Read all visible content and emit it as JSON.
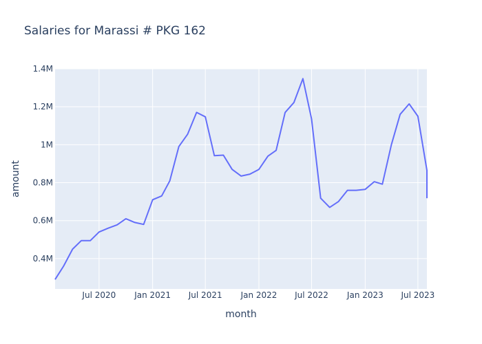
{
  "chart_data": {
    "type": "line",
    "title": "Salaries for Marassi # PKG 162",
    "xlabel": "month",
    "ylabel": "amount",
    "xlim": [
      "2020-02-01",
      "2023-08-01"
    ],
    "ylim": [
      240000,
      1400000
    ],
    "y_ticks": [
      {
        "value": 400000,
        "label": "0.4M"
      },
      {
        "value": 600000,
        "label": "0.6M"
      },
      {
        "value": 800000,
        "label": "0.8M"
      },
      {
        "value": 1000000,
        "label": "1M"
      },
      {
        "value": 1200000,
        "label": "1.2M"
      },
      {
        "value": 1400000,
        "label": "1.4M"
      }
    ],
    "x_ticks": [
      {
        "value": "2020-07-01",
        "label": "Jul 2020"
      },
      {
        "value": "2021-01-01",
        "label": "Jan 2021"
      },
      {
        "value": "2021-07-01",
        "label": "Jul 2021"
      },
      {
        "value": "2022-01-01",
        "label": "Jan 2022"
      },
      {
        "value": "2022-07-01",
        "label": "Jul 2022"
      },
      {
        "value": "2023-01-01",
        "label": "Jan 2023"
      },
      {
        "value": "2023-07-01",
        "label": "Jul 2023"
      }
    ],
    "line_color": "#636efa",
    "plot_bg": "#e5ecf6",
    "grid": true,
    "series": [
      {
        "x": [
          "2020-02-01",
          "2020-03-01",
          "2020-04-01",
          "2020-05-01",
          "2020-06-01",
          "2020-07-01",
          "2020-08-01",
          "2020-09-01",
          "2020-10-01",
          "2020-11-01",
          "2020-12-01",
          "2021-01-01",
          "2021-02-01",
          "2021-03-01",
          "2021-04-01",
          "2021-05-01",
          "2021-06-01",
          "2021-07-01",
          "2021-08-01",
          "2021-09-01",
          "2021-10-01",
          "2021-11-01",
          "2021-12-01",
          "2022-01-01",
          "2022-02-01",
          "2022-03-01",
          "2022-04-01",
          "2022-05-01",
          "2022-06-01",
          "2022-07-01",
          "2022-08-01",
          "2022-09-01",
          "2022-10-01",
          "2022-11-01",
          "2022-12-01",
          "2023-01-01",
          "2023-02-01",
          "2023-03-01",
          "2023-04-01",
          "2023-05-01",
          "2023-06-01",
          "2023-07-01",
          "2023-08-01",
          "2023-09-01"
        ],
        "y": [
          290000,
          360000,
          450000,
          495000,
          495000,
          540000,
          560000,
          578000,
          610000,
          590000,
          580000,
          710000,
          730000,
          810000,
          990000,
          1055000,
          1170000,
          1147000,
          942000,
          945000,
          870000,
          835000,
          845000,
          870000,
          940000,
          970000,
          1170000,
          1222000,
          1348000,
          1135000,
          718000,
          670000,
          700000,
          760000,
          760000,
          765000,
          805000,
          792000,
          1000000,
          1160000,
          1215000,
          1150000,
          865000,
          718000
        ]
      }
    ]
  }
}
